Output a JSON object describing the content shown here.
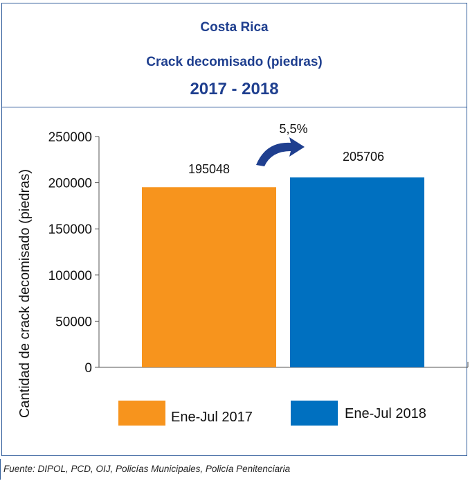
{
  "header": {
    "line1": "Costa Rica",
    "line2": "Crack decomisado (piedras)",
    "line3": "2017 - 2018"
  },
  "chart_data": {
    "type": "bar",
    "categories": [
      "Ene-Jul 2017",
      "Ene-Jul 2018"
    ],
    "values": [
      195048,
      205706
    ],
    "colors": [
      "#f7941d",
      "#0070c0"
    ],
    "ylabel": "Cantidad de crack decomisado (piedras)",
    "ylim": [
      0,
      250000
    ],
    "yticks": [
      0,
      50000,
      100000,
      150000,
      200000,
      250000
    ],
    "data_labels": [
      "195048",
      "205706"
    ],
    "annotation": "5,5%",
    "annotation_arrow_color": "#1f3f8f",
    "legend_position": "bottom"
  },
  "footer": {
    "source": "Fuente: DIPOL, PCD, OIJ, Policías Municipales, Policía Penitenciaria"
  }
}
